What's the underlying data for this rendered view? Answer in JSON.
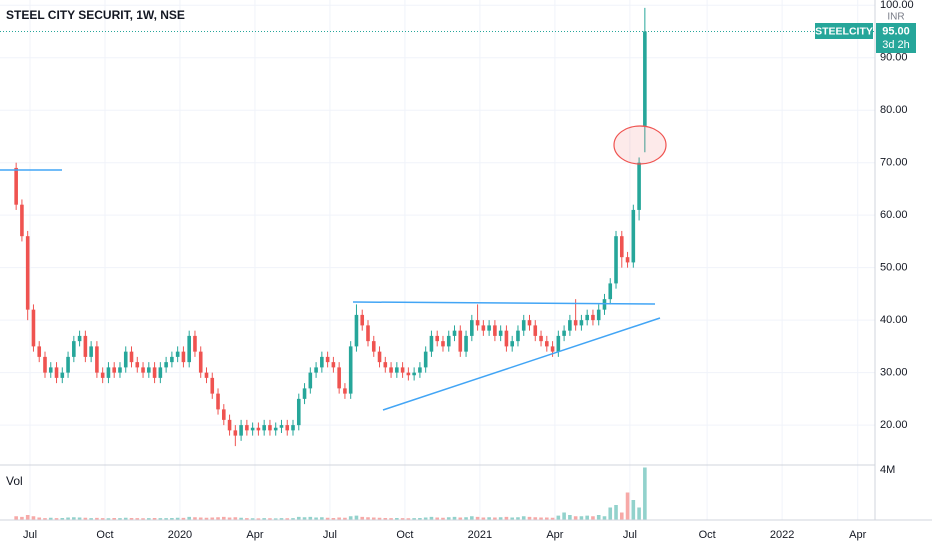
{
  "chart_data": {
    "type": "candlestick",
    "title": "STEEL CITY SECURIT, 1W, NSE",
    "symbol": "STEELCITY",
    "last_price_label": "95.00",
    "countdown": "3d 2h",
    "currency": "INR",
    "volume_label": "Vol",
    "up_color": "#26a69a",
    "down_color": "#ef5350",
    "xlim": [
      -2.8,
      148.9
    ],
    "xticks": [
      {
        "value": 2.4,
        "label": "Jul"
      },
      {
        "value": 15.4,
        "label": "Oct"
      },
      {
        "value": 28.4,
        "label": "2020"
      },
      {
        "value": 41.4,
        "label": "Apr"
      },
      {
        "value": 54.4,
        "label": "Jul"
      },
      {
        "value": 67.4,
        "label": "Oct"
      },
      {
        "value": 80.4,
        "label": "2021"
      },
      {
        "value": 93.4,
        "label": "Apr"
      },
      {
        "value": 106.4,
        "label": "Jul"
      },
      {
        "value": 119.8,
        "label": "Oct"
      },
      {
        "value": 132.8,
        "label": "2022"
      },
      {
        "value": 145.9,
        "label": "Apr"
      }
    ],
    "ylim": [
      12.4,
      101
    ],
    "yticks": [
      {
        "value": 20,
        "label": "20.00"
      },
      {
        "value": 30,
        "label": "30.00"
      },
      {
        "value": 40,
        "label": "40.00"
      },
      {
        "value": 50,
        "label": "50.00"
      },
      {
        "value": 60,
        "label": "60.00"
      },
      {
        "value": 70,
        "label": "70.00"
      },
      {
        "value": 80,
        "label": "80.00"
      },
      {
        "value": 90,
        "label": "90.00"
      },
      {
        "value": 100,
        "label": "100.00"
      }
    ],
    "grid": true,
    "open": [
      69,
      62,
      56,
      42,
      35,
      33,
      30,
      31,
      29,
      30,
      33,
      36,
      37,
      33,
      35,
      30,
      29,
      31,
      30,
      31,
      34,
      32,
      31,
      30,
      31,
      29,
      31,
      32,
      33,
      34,
      32,
      37,
      34,
      30,
      29,
      26,
      23,
      21,
      19,
      18,
      20,
      19,
      19.5,
      19,
      20,
      19,
      19.5,
      20,
      19,
      20,
      25,
      27,
      30,
      31,
      33,
      32,
      31,
      27,
      26,
      35,
      41,
      39,
      36,
      34,
      32,
      31,
      30,
      31,
      30,
      29.5,
      30,
      31,
      34,
      37,
      36,
      35,
      37,
      38,
      34,
      37,
      40,
      39,
      38,
      39,
      37,
      38,
      35,
      36,
      38,
      40,
      39,
      37,
      36,
      35,
      34,
      37,
      38,
      40,
      39,
      40,
      41,
      40,
      42,
      44,
      47,
      56,
      52,
      51,
      61,
      77
    ],
    "high": [
      70,
      63,
      57,
      43,
      36,
      34,
      32,
      32,
      31,
      34,
      37,
      38,
      38,
      36,
      36,
      31,
      32,
      32,
      32,
      35,
      35,
      33,
      32,
      32,
      32,
      32,
      33,
      34,
      35,
      35,
      38,
      38,
      35,
      31,
      30,
      27,
      24,
      22,
      20,
      21,
      21,
      20.5,
      20.5,
      21,
      21,
      20.5,
      21,
      21,
      21,
      26,
      28,
      31,
      32,
      34,
      34,
      33,
      32,
      28,
      36,
      43,
      42,
      40,
      37,
      35,
      33,
      32,
      32,
      32,
      31,
      31,
      32,
      35,
      38,
      38,
      37,
      38,
      39,
      39,
      38,
      41,
      43,
      40,
      40,
      40,
      39,
      39,
      37,
      39,
      41,
      41,
      40,
      38,
      37,
      36,
      38,
      39,
      41,
      44,
      41,
      42,
      42,
      43,
      45,
      48,
      57,
      57,
      53,
      62,
      71,
      99.5
    ],
    "low": [
      61,
      55,
      40,
      34,
      32,
      29,
      29,
      28,
      28,
      29,
      32,
      35,
      32,
      32,
      29,
      28,
      28,
      29,
      29,
      30,
      31,
      30,
      29,
      29,
      28,
      28,
      30,
      31,
      32,
      31,
      31,
      33,
      29,
      28,
      25,
      22,
      20,
      18,
      16,
      17,
      18,
      18,
      18,
      18,
      18,
      18,
      18.5,
      18,
      18,
      19,
      24,
      26,
      29,
      30,
      31,
      30,
      26,
      25,
      25,
      34,
      38,
      35,
      33,
      31,
      30,
      29,
      29,
      29,
      28.5,
      28.5,
      29,
      30,
      33,
      35,
      34,
      34,
      36,
      33,
      33,
      36,
      38,
      37,
      37,
      36,
      36,
      34,
      34,
      35,
      37,
      38,
      36,
      35,
      34,
      33,
      33,
      36,
      37,
      38,
      38,
      39,
      39,
      39,
      41,
      43,
      46,
      50,
      50,
      50,
      59,
      72
    ],
    "close": [
      62,
      56,
      42,
      35,
      33,
      30,
      31,
      29,
      30,
      33,
      36,
      37,
      33,
      35,
      30,
      29,
      31,
      30,
      31,
      34,
      32,
      31,
      30,
      31,
      29,
      31,
      32,
      33,
      34,
      32,
      37,
      34,
      30,
      29,
      26,
      23,
      21,
      19,
      18,
      20,
      19,
      19.5,
      19,
      20,
      19,
      19.5,
      20,
      19,
      20,
      25,
      27,
      30,
      31,
      33,
      32,
      31,
      27,
      26,
      35,
      41,
      39,
      36,
      34,
      32,
      31,
      30,
      31,
      30,
      29.5,
      30,
      31,
      34,
      37,
      36,
      35,
      37,
      38,
      34,
      37,
      40,
      39,
      38,
      39,
      37,
      38,
      35,
      36,
      38,
      40,
      39,
      37,
      36,
      35,
      34,
      37,
      38,
      40,
      39,
      40,
      41,
      40,
      42,
      44,
      47,
      56,
      52,
      51,
      61,
      70,
      95
    ],
    "volume": [
      300000,
      250000,
      400000,
      300000,
      200000,
      150000,
      180000,
      150000,
      160000,
      200000,
      220000,
      200000,
      180000,
      150000,
      170000,
      150000,
      140000,
      160000,
      150000,
      180000,
      160000,
      150000,
      140000,
      150000,
      160000,
      150000,
      150000,
      160000,
      180000,
      170000,
      250000,
      220000,
      200000,
      180000,
      200000,
      220000,
      250000,
      200000,
      220000,
      180000,
      150000,
      140000,
      130000,
      150000,
      140000,
      130000,
      150000,
      140000,
      150000,
      250000,
      220000,
      250000,
      200000,
      220000,
      180000,
      160000,
      200000,
      180000,
      300000,
      350000,
      250000,
      220000,
      200000,
      180000,
      160000,
      150000,
      160000,
      150000,
      140000,
      150000,
      160000,
      200000,
      250000,
      200000,
      180000,
      220000,
      250000,
      200000,
      220000,
      300000,
      250000,
      200000,
      220000,
      200000,
      220000,
      250000,
      200000,
      220000,
      300000,
      250000,
      220000,
      200000,
      200000,
      180000,
      350000,
      600000,
      400000,
      300000,
      300000,
      350000,
      300000,
      400000,
      300000,
      1000000,
      1200000,
      600000,
      2200000,
      1600000,
      1000000,
      4200000
    ],
    "vlim": [
      0,
      4400000
    ],
    "vticks": [
      {
        "value": 4000000,
        "label": "4M"
      }
    ]
  }
}
